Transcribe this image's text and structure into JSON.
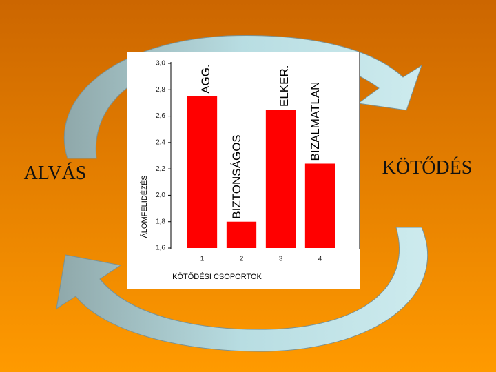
{
  "slide": {
    "left_label": "ALVÁS",
    "right_label": "KÖTŐDÉS"
  },
  "chart_data": {
    "type": "bar",
    "y_label": "ÁLOMFELIDÉZÉS",
    "x_label": "KÖTŐDÉSI CSOPORTOK",
    "categories": [
      "1",
      "2",
      "3",
      "4"
    ],
    "values": [
      2.75,
      1.8,
      2.65,
      2.24
    ],
    "annotations": [
      "AGG.",
      "BIZTONSÁGOS",
      "ELKER.",
      "BIZALMATLAN"
    ],
    "color": "#ff0000",
    "ylim": [
      1.6,
      3.0
    ],
    "yticks": [
      {
        "value": 1.6,
        "label": "1,6"
      },
      {
        "value": 1.8,
        "label": "1,8"
      },
      {
        "value": 2.0,
        "label": "2,0"
      },
      {
        "value": 2.2,
        "label": "2,2"
      },
      {
        "value": 2.4,
        "label": "2,4"
      },
      {
        "value": 2.6,
        "label": "2,6"
      },
      {
        "value": 2.8,
        "label": "2,8"
      },
      {
        "value": 3.0,
        "label": "3,0"
      }
    ]
  }
}
